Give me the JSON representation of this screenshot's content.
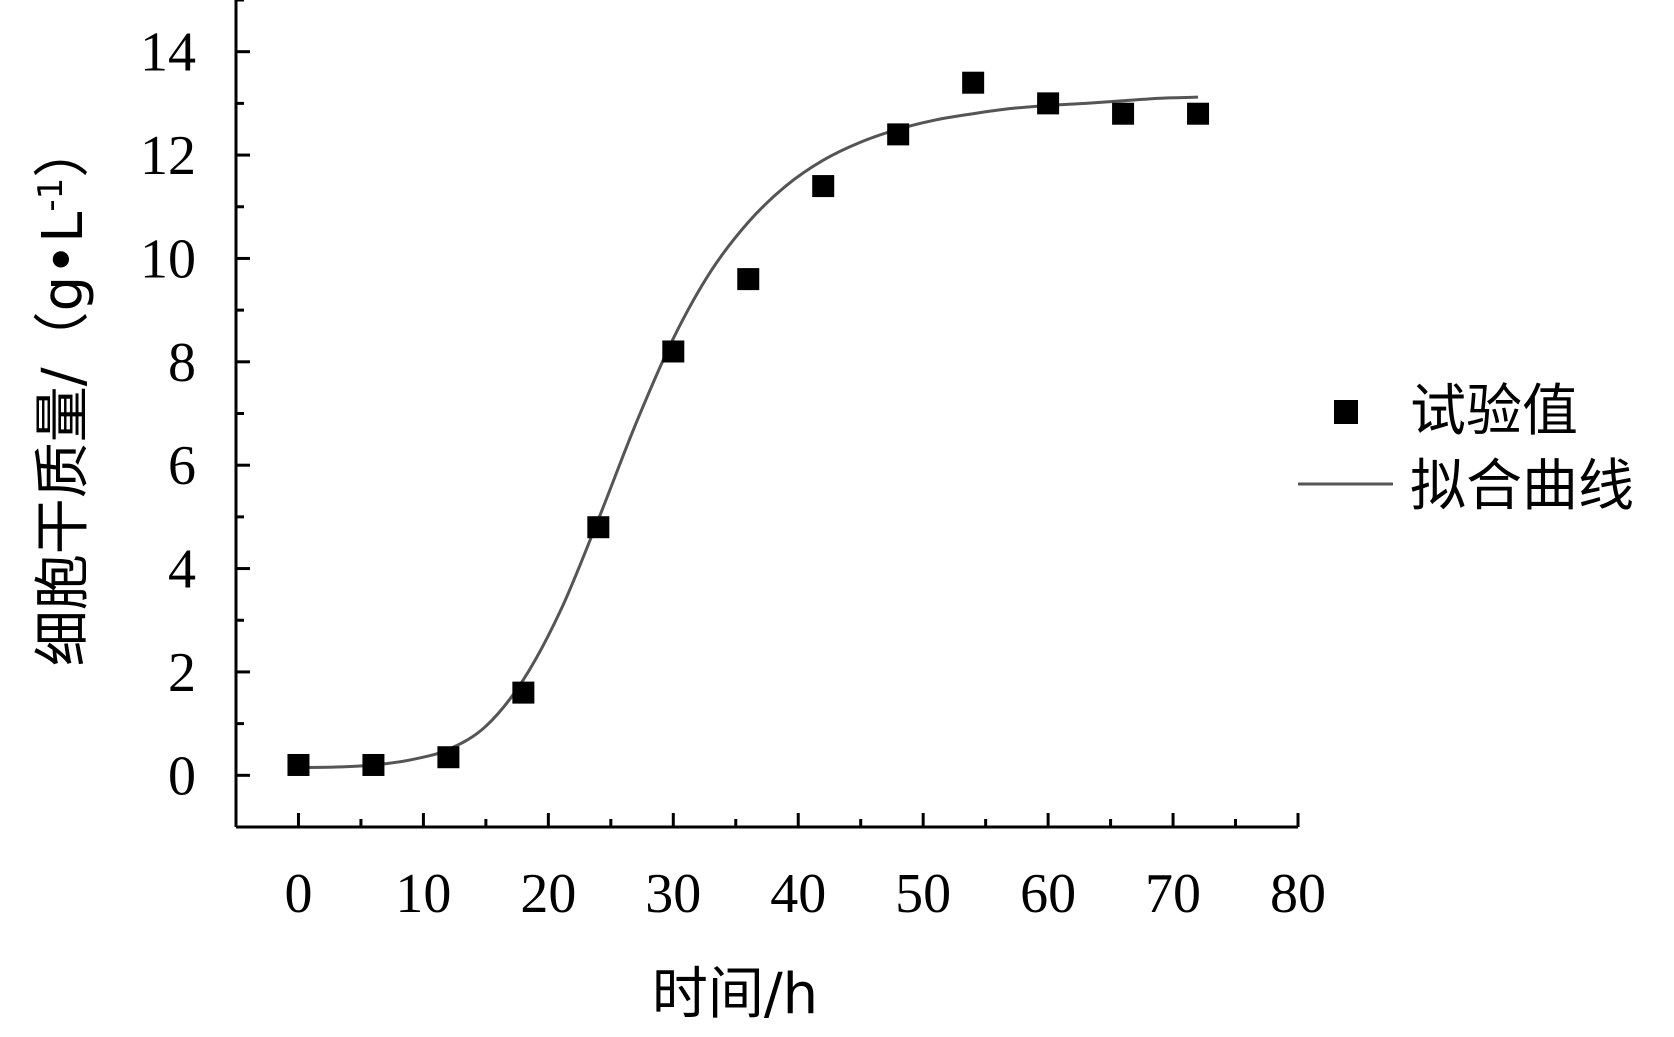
{
  "chart_data": {
    "type": "scatter",
    "xlabel": "时间/h",
    "ylabel": "细胞干质量/（g•L-1）",
    "ylabel_main": "细胞干质量/（g•L",
    "ylabel_sup": "-1",
    "ylabel_close": "）",
    "xlim": [
      -5,
      80
    ],
    "ylim": [
      -1,
      15
    ],
    "x_ticks": [
      0,
      10,
      20,
      30,
      40,
      50,
      60,
      70,
      80
    ],
    "x_tick_labels": [
      "0",
      "10",
      "20",
      "30",
      "40",
      "50",
      "60",
      "70",
      "80"
    ],
    "y_ticks": [
      0,
      2,
      4,
      6,
      8,
      10,
      12,
      14
    ],
    "y_tick_labels": [
      "0",
      "2",
      "4",
      "6",
      "8",
      "10",
      "12",
      "14"
    ],
    "grid": false,
    "legend_position": "right",
    "series": [
      {
        "name": "试验值",
        "kind": "scatter",
        "marker": "square",
        "color": "#000000",
        "x": [
          0,
          6,
          12,
          18,
          24,
          30,
          36,
          42,
          48,
          54,
          60,
          66,
          72
        ],
        "y": [
          0.2,
          0.2,
          0.35,
          1.6,
          4.8,
          8.2,
          9.6,
          11.4,
          12.4,
          13.4,
          13.0,
          12.8,
          12.8
        ]
      },
      {
        "name": "拟合曲线",
        "kind": "line",
        "color": "#555555",
        "x": [
          0,
          3,
          6,
          9,
          12,
          15,
          18,
          21,
          24,
          27,
          30,
          33,
          36,
          39,
          42,
          45,
          48,
          51,
          54,
          57,
          60,
          63,
          66,
          69,
          72
        ],
        "y": [
          0.15,
          0.16,
          0.2,
          0.3,
          0.5,
          0.95,
          1.85,
          3.2,
          4.95,
          6.8,
          8.45,
          9.75,
          10.7,
          11.4,
          11.9,
          12.25,
          12.5,
          12.68,
          12.8,
          12.9,
          12.96,
          13.0,
          13.05,
          13.1,
          13.12
        ]
      }
    ]
  }
}
